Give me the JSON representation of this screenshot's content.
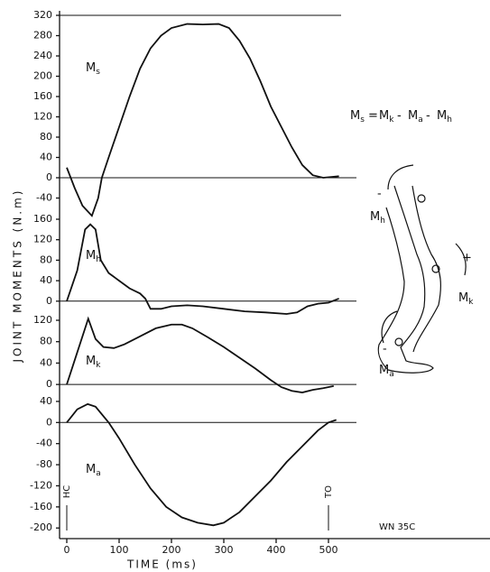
{
  "chart_data": {
    "type": "line",
    "xlabel": "TIME (ms)",
    "ylabel": "JOINT MOMENTS (N.m)",
    "xlim": [
      -12,
      800
    ],
    "xticks": [
      0,
      100,
      200,
      300,
      400,
      500
    ],
    "equation": [
      {
        "text": "M",
        "sub": "s"
      },
      {
        "text": "="
      },
      {
        "text": "M",
        "sub": "k"
      },
      {
        "text": "-"
      },
      {
        "text": "M",
        "sub": "a"
      },
      {
        "text": "-"
      },
      {
        "text": "M",
        "sub": "h"
      }
    ],
    "events": [
      {
        "label": "HC",
        "x": 0
      },
      {
        "label": "TO",
        "x": 500
      }
    ],
    "note": "WN 35C",
    "panels": [
      {
        "label": {
          "text": "M",
          "sub": "s"
        },
        "ylim": [
          -80,
          320
        ],
        "yticks": [
          -40,
          0,
          40,
          80,
          120,
          160,
          200,
          240,
          280,
          320
        ],
        "x": [
          0,
          15,
          30,
          48,
          60,
          67,
          80,
          100,
          120,
          140,
          160,
          180,
          200,
          230,
          260,
          290,
          310,
          330,
          350,
          370,
          390,
          410,
          430,
          450,
          470,
          490,
          510,
          520
        ],
        "values": [
          20,
          -20,
          -55,
          -75,
          -40,
          0,
          40,
          100,
          160,
          215,
          255,
          280,
          295,
          303,
          302,
          303,
          295,
          270,
          235,
          190,
          140,
          100,
          60,
          25,
          5,
          0,
          2,
          3
        ]
      },
      {
        "label": {
          "text": "M",
          "sub": "h"
        },
        "ylim": [
          -25,
          160
        ],
        "yticks": [
          0,
          40,
          80,
          120,
          160
        ],
        "x": [
          0,
          20,
          35,
          45,
          55,
          65,
          80,
          100,
          120,
          140,
          150,
          160,
          180,
          200,
          230,
          260,
          300,
          340,
          380,
          420,
          440,
          460,
          480,
          500,
          520
        ],
        "values": [
          0,
          60,
          140,
          150,
          140,
          80,
          55,
          40,
          25,
          15,
          5,
          -15,
          -15,
          -10,
          -8,
          -10,
          -15,
          -20,
          -22,
          -25,
          -22,
          -10,
          -5,
          -3,
          5
        ]
      },
      {
        "label": {
          "text": "M",
          "sub": "k"
        },
        "ylim": [
          -20,
          120
        ],
        "yticks": [
          0,
          40,
          80,
          120
        ],
        "x": [
          0,
          20,
          41,
          55,
          70,
          90,
          110,
          140,
          170,
          200,
          220,
          240,
          270,
          300,
          330,
          360,
          390,
          410,
          430,
          450,
          470,
          490,
          510
        ],
        "values": [
          0,
          60,
          123,
          85,
          70,
          68,
          75,
          90,
          105,
          112,
          112,
          105,
          88,
          70,
          50,
          30,
          8,
          -5,
          -12,
          -15,
          -10,
          -7,
          -3
        ]
      },
      {
        "label": {
          "text": "M",
          "sub": "a"
        },
        "ylim": [
          -215,
          45
        ],
        "yticks": [
          -200,
          -160,
          -120,
          -80,
          -40,
          0,
          40
        ],
        "x": [
          0,
          20,
          40,
          55,
          80,
          100,
          130,
          160,
          190,
          220,
          250,
          280,
          300,
          330,
          360,
          390,
          420,
          450,
          480,
          500,
          515
        ],
        "values": [
          0,
          25,
          35,
          30,
          0,
          -30,
          -80,
          -125,
          -160,
          -180,
          -190,
          -195,
          -190,
          -170,
          -140,
          -110,
          -75,
          -45,
          -15,
          0,
          5
        ]
      }
    ]
  },
  "diagram": {
    "labels": [
      {
        "text": "M",
        "sub": "h",
        "sign": "-"
      },
      {
        "text": "M",
        "sub": "k",
        "sign": "+"
      },
      {
        "text": "M",
        "sub": "a",
        "sign": "-"
      }
    ]
  }
}
